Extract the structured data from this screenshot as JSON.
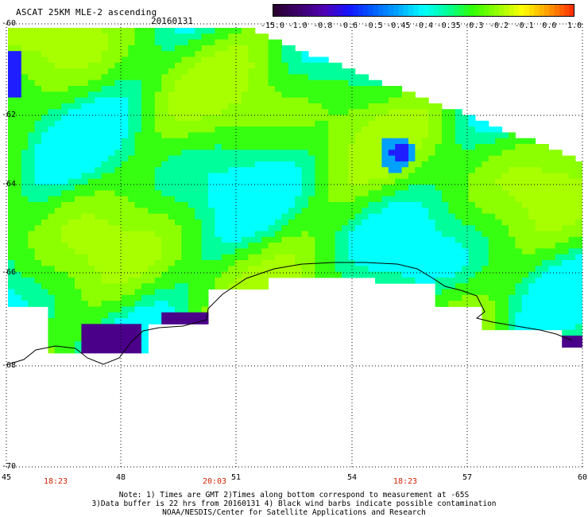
{
  "header": {
    "title": "ASCAT 25KM MLE-2 ascending",
    "date": "20160131"
  },
  "colorbar": {
    "tick_labels": [
      "-15.0",
      "-1.0",
      "-0.8",
      "-0.6",
      "-0.5",
      "-0.45",
      "-0.4",
      "-0.35",
      "-0.3",
      "-0.2",
      "-0.1",
      "0.0",
      "1.0"
    ],
    "colors": [
      "#2a0030",
      "#3c006e",
      "#5000b4",
      "#1414ff",
      "#0060ff",
      "#00a8ff",
      "#00ffff",
      "#00ff96",
      "#32ff00",
      "#96ff00",
      "#ffff00",
      "#ffa000",
      "#ff3200"
    ]
  },
  "map": {
    "lat_labels": [
      "-60",
      "-62",
      "-64",
      "-66",
      "-68",
      "-70"
    ],
    "lon_labels": [
      "45",
      "48",
      "51",
      "54",
      "57",
      "60"
    ],
    "time_labels": [
      "18:23",
      "20:03",
      "18:23"
    ],
    "land_color": "#ffffff",
    "grid_color": "#000000"
  },
  "footer": {
    "note_line1": "Note: 1) Times are GMT 2)Times along bottom correspond to measurement at -65S",
    "note_line2": "3)Data buffer is 22 hrs from 20160131 4) Black wind barbs indicate possible contamination",
    "credit": "NOAA/NESDIS/Center for Satellite Applications and Research"
  }
}
